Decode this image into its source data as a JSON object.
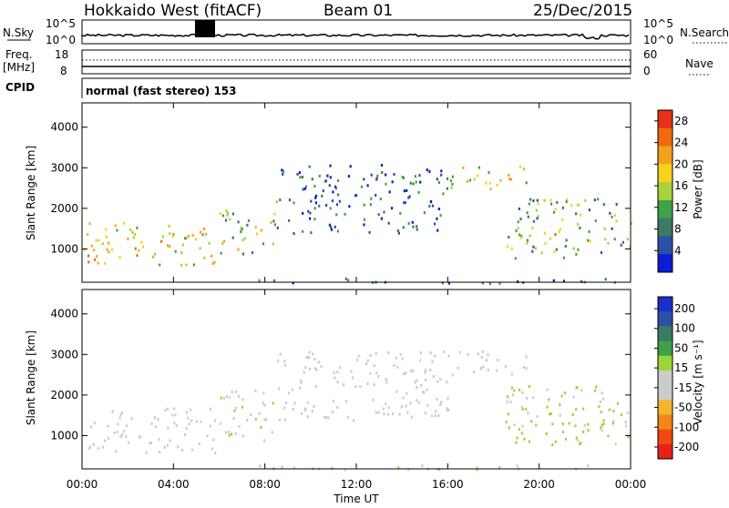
{
  "header": {
    "station": "Hokkaido West (fitACF)",
    "beam": "Beam 01",
    "date": "25/Dec/2015"
  },
  "strip_panels": {
    "nsky_label": "N.Sky",
    "nsky_ticks": [
      "10^5",
      "10^0"
    ],
    "nsearch_label": "N.Search",
    "nsearch_ticks": [
      "10^5",
      "10^0"
    ],
    "freq_label": "Freq.",
    "freq_unit": "[MHz]",
    "freq_ticks": [
      "18",
      "8"
    ],
    "nave_label": "Nave",
    "nave_ticks": [
      "60",
      "0"
    ],
    "cpid_label": "CPID",
    "cpid_text": "normal (fast stereo) 153"
  },
  "colors": {
    "power_scale": [
      "#0b1bd6",
      "#2e4fa8",
      "#3c7a62",
      "#3fa24a",
      "#a8d23a",
      "#f5d21b",
      "#f5a21b",
      "#f06a10",
      "#e8301a"
    ],
    "velocity_scale": [
      "#e8201a",
      "#f04a10",
      "#f5851b",
      "#f5b52a",
      "#cccccc",
      "#cccccc",
      "#9ad63a",
      "#3fa04a",
      "#3c7a62",
      "#2e4fa8",
      "#1a2fc8"
    ]
  },
  "chart_data": [
    {
      "type": "heatmap",
      "title": "",
      "xlabel": "Time UT",
      "ylabel": "Slant Range [km]",
      "x_ticks": [
        "00:00",
        "04:00",
        "08:00",
        "12:00",
        "16:00",
        "20:00",
        "00:00"
      ],
      "y_ticks": [
        "1000",
        "2000",
        "3000",
        "4000"
      ],
      "ylim": [
        180,
        4600
      ],
      "xlim_hours": [
        0,
        24
      ],
      "colorbar": {
        "label": "Power [dB]",
        "ticks": [
          "4",
          "8",
          "12",
          "16",
          "20",
          "24",
          "28"
        ],
        "range": [
          0,
          30
        ]
      },
      "regions": [
        {
          "t0": 0.0,
          "t1": 5.8,
          "r_low": 600,
          "r_high": 1700,
          "level": 18
        },
        {
          "t0": 6.0,
          "t1": 8.5,
          "r_low": 900,
          "r_high": 2200,
          "level": 14
        },
        {
          "t0": 7.0,
          "t1": 24.0,
          "r_low": 180,
          "r_high": 300,
          "level": 6
        },
        {
          "t0": 8.5,
          "t1": 16.0,
          "r_low": 1400,
          "r_high": 3100,
          "level": 6
        },
        {
          "t0": 16.0,
          "t1": 19.5,
          "r_low": 2500,
          "r_high": 3100,
          "level": 16
        },
        {
          "t0": 18.5,
          "t1": 24.0,
          "r_low": 800,
          "r_high": 2300,
          "level": 12
        }
      ]
    },
    {
      "type": "heatmap",
      "title": "",
      "xlabel": "Time UT",
      "ylabel": "Slant Range [km]",
      "x_ticks": [
        "00:00",
        "04:00",
        "08:00",
        "12:00",
        "16:00",
        "20:00",
        "00:00"
      ],
      "y_ticks": [
        "1000",
        "2000",
        "3000",
        "4000"
      ],
      "ylim": [
        180,
        4600
      ],
      "xlim_hours": [
        0,
        24
      ],
      "colorbar": {
        "label": "Velocity [m s⁻¹]",
        "ticks": [
          "200",
          "100",
          "50",
          "15",
          "-15",
          "-50",
          "-100",
          "-200"
        ],
        "range": [
          -250,
          250
        ]
      },
      "regions": [
        {
          "t0": 0.0,
          "t1": 5.8,
          "r_low": 600,
          "r_high": 1700,
          "level": 0
        },
        {
          "t0": 6.0,
          "t1": 8.5,
          "r_low": 900,
          "r_high": 2200,
          "level": 10
        },
        {
          "t0": 7.0,
          "t1": 24.0,
          "r_low": 180,
          "r_high": 300,
          "level": -60
        },
        {
          "t0": 8.5,
          "t1": 16.0,
          "r_low": 1400,
          "r_high": 3100,
          "level": -20
        },
        {
          "t0": 16.0,
          "t1": 19.5,
          "r_low": 2500,
          "r_high": 3100,
          "level": 0
        },
        {
          "t0": 18.5,
          "t1": 24.0,
          "r_low": 800,
          "r_high": 2300,
          "level": 30
        }
      ]
    }
  ]
}
